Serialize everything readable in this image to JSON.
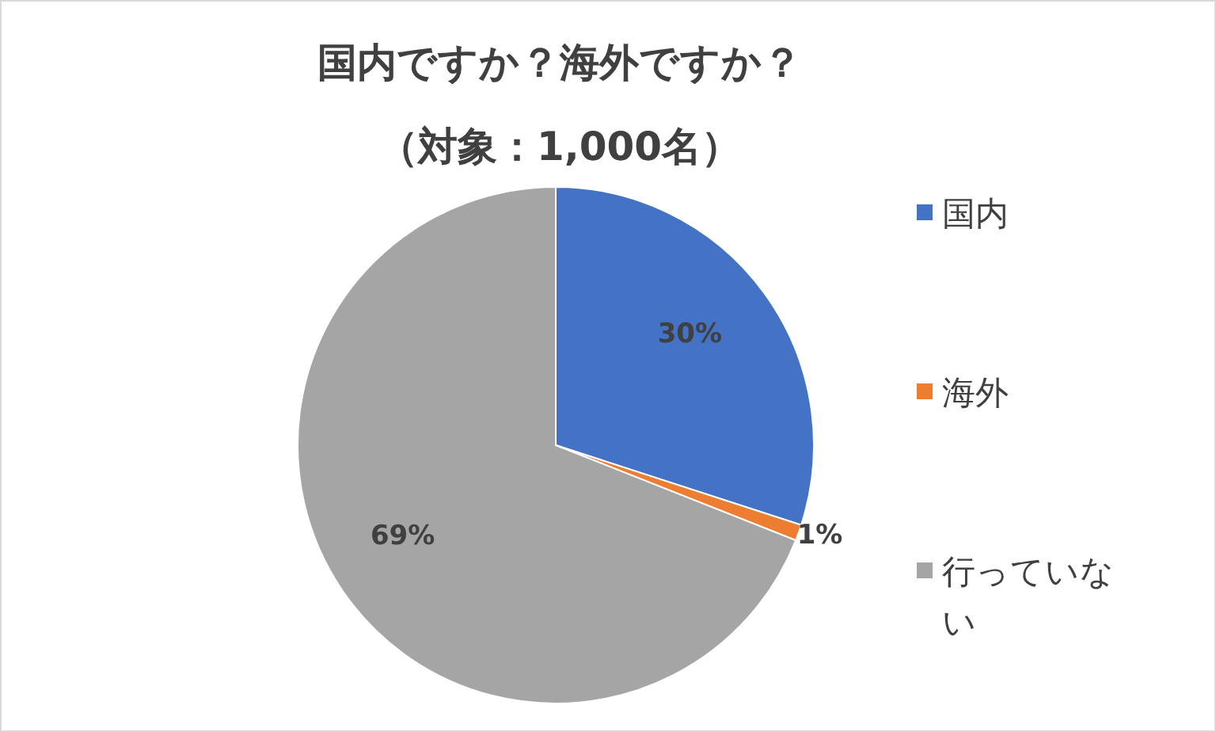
{
  "chart_data": {
    "type": "pie",
    "title": "国内ですか？海外ですか？",
    "subtitle": "（対象：1,000名）",
    "categories": [
      "国内",
      "海外",
      "行っていない"
    ],
    "values": [
      30,
      1,
      69
    ],
    "colors": [
      "#4472c4",
      "#ed7d31",
      "#a5a5a5"
    ],
    "value_labels": [
      "30%",
      "1%",
      "69%"
    ],
    "legend": "right"
  }
}
